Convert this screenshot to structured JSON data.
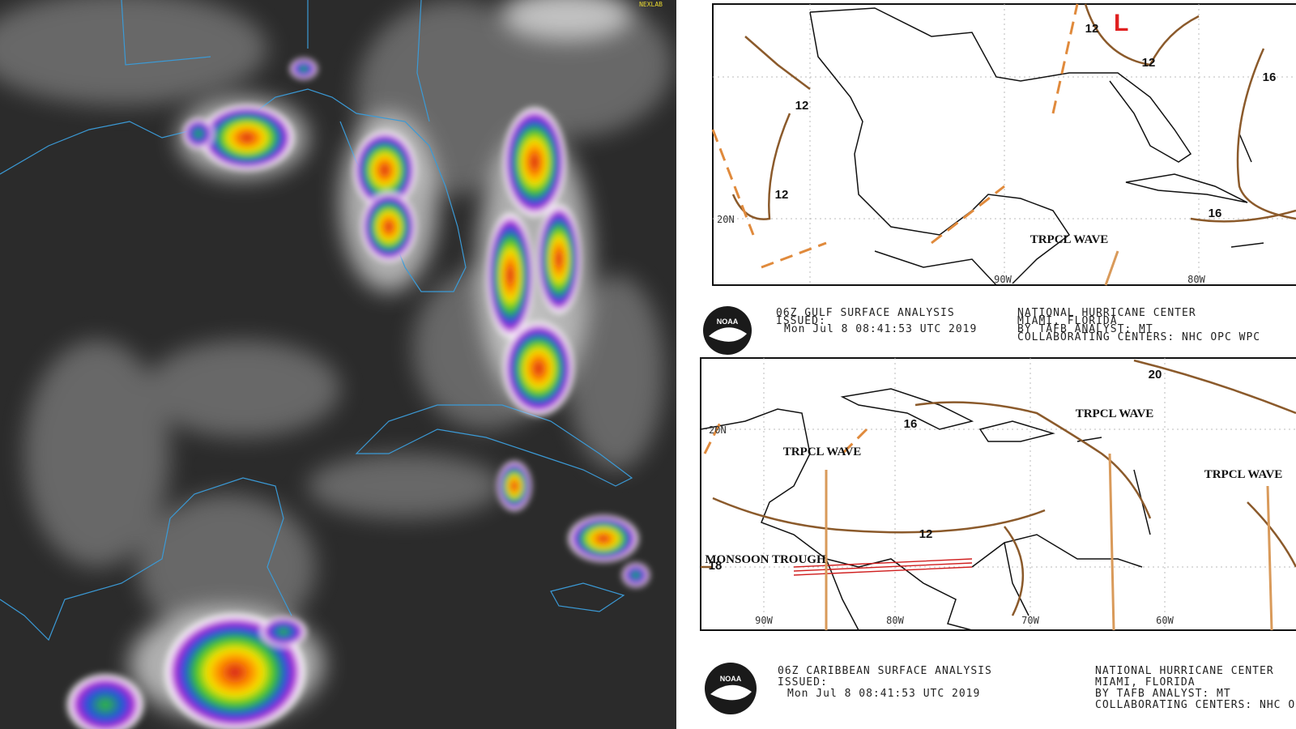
{
  "satellite": {
    "label": "NEXLAB"
  },
  "gulf_map": {
    "labels": [
      "L",
      "TRPCL WAVE"
    ],
    "isobars": [
      "12",
      "12",
      "12",
      "12",
      "16",
      "16"
    ],
    "lat_labels": [
      "20N"
    ],
    "lon_labels": [
      "90W",
      "80W"
    ],
    "logo": "NOAA",
    "caption": {
      "title": "06Z GULF SURFACE ANALYSIS",
      "issued": "ISSUED:",
      "time": "Mon Jul 8 08:41:53 UTC 2019",
      "center": "NATIONAL HURRICANE CENTER",
      "location": "MIAMI, FLORIDA",
      "analyst": "BY TAFB ANALYST: MT",
      "collab": "COLLABORATING CENTERS: NHC OPC WPC"
    }
  },
  "caribbean_map": {
    "labels": [
      "TRPCL WAVE",
      "TRPCL WAVE",
      "TRPCL WAVE",
      "MONSOON TROUGH"
    ],
    "isobars": [
      "12",
      "16",
      "20",
      "18"
    ],
    "lat_labels": [
      "20N"
    ],
    "lon_labels": [
      "90W",
      "80W",
      "70W",
      "60W"
    ],
    "logo": "NOAA",
    "caption": {
      "title": "06Z CARIBBEAN SURFACE ANALYSIS",
      "issued": "ISSUED:",
      "time": "Mon Jul 8 08:41:53 UTC 2019",
      "center": "NATIONAL HURRICANE CENTER",
      "location": "MIAMI, FLORIDA",
      "analyst": "BY TAFB ANALYST: MT",
      "collab": "COLLABORATING CENTERS: NHC OPC WPC"
    }
  }
}
